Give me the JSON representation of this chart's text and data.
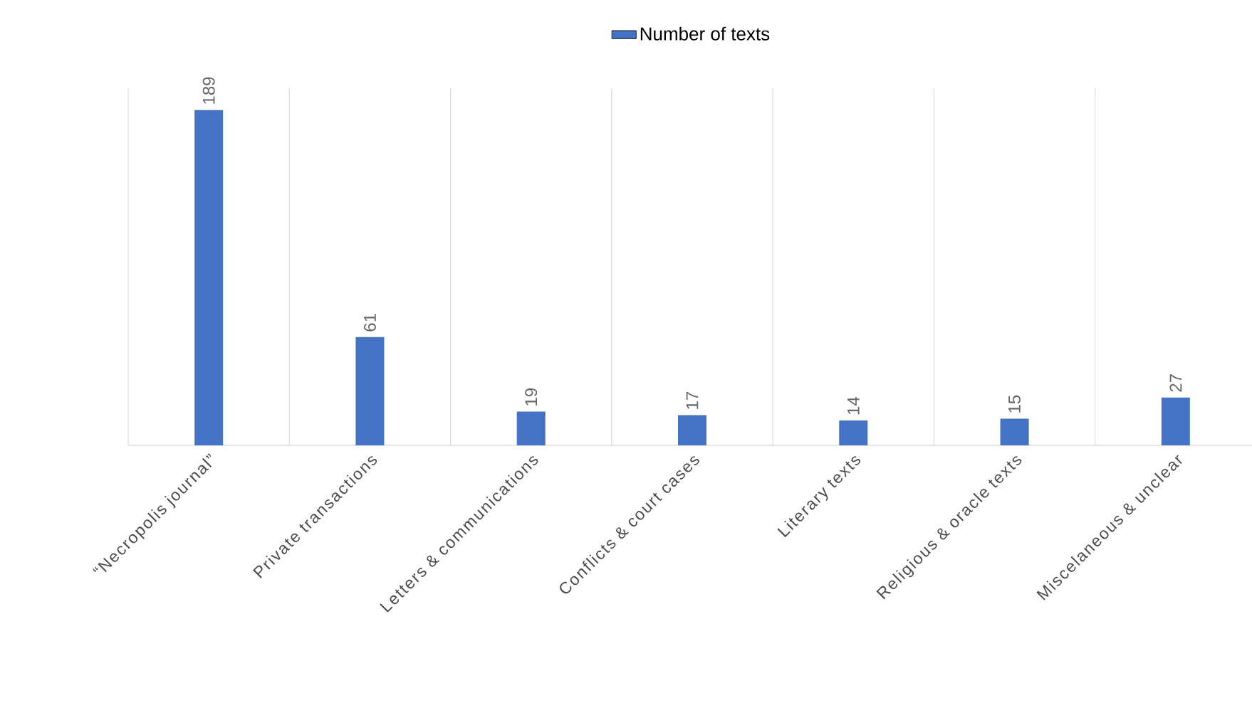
{
  "chart_data": {
    "type": "bar",
    "categories": [
      "“Necropolis journal”",
      "Private transactions",
      "Letters & communications",
      "Conflicts & court cases",
      "Literary texts",
      "Religious & oracle texts",
      "Miscelaneous & unclear"
    ],
    "series": [
      {
        "name": "Number of texts",
        "color": "#4472c4",
        "values": [
          189,
          61,
          19,
          17,
          14,
          15,
          27
        ]
      }
    ],
    "data_labels": true,
    "grid": "x",
    "legend": "top"
  }
}
